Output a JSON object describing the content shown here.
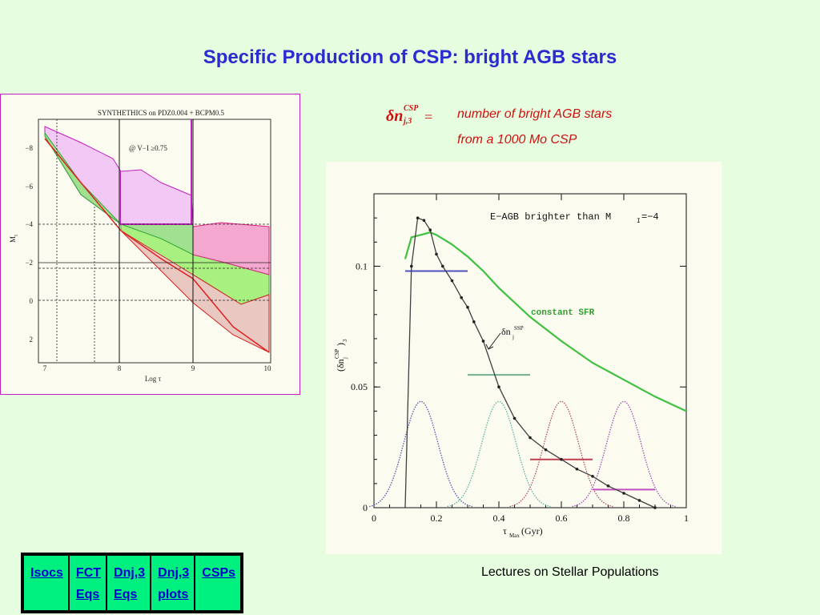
{
  "title": "Specific Production of CSP: bright AGB stars",
  "formula": {
    "symbol": "δn",
    "superscript": "CSP",
    "subscript": "j,3",
    "equals": "="
  },
  "description": {
    "line1": "number of bright AGB stars",
    "line2": "from a 1000 Mo CSP"
  },
  "left_figure": {
    "title": "SYNTHETHICS on PDZ0.004 + BCPM0.5",
    "annotation": "@ V−I ≥0.75",
    "ylabel": "M",
    "ylabel_sub": "I",
    "xlabel": "Log τ",
    "xticks": [
      "7",
      "8",
      "9",
      "10"
    ],
    "yticks": [
      "−8",
      "−6",
      "−4",
      "−2",
      "0",
      "2"
    ]
  },
  "chart_data": {
    "type": "line",
    "title": "E−AGB brighter than M",
    "title_sub": "I",
    "title_tail": "=−4",
    "xlabel": "τ",
    "xlabel_sub": "Max",
    "xlabel_tail": "(Gyr)",
    "ylabel": "(δn",
    "ylabel_sup": "CSP",
    "ylabel_sub": "j",
    "ylabel_tail": ")",
    "ylabel_tail_sub": "3",
    "xlim": [
      0,
      1
    ],
    "ylim": [
      0,
      0.13
    ],
    "xticks": [
      "0",
      "0.2",
      "0.4",
      "0.6",
      "0.8",
      "1"
    ],
    "yticks": [
      "0",
      "0.05",
      "0.1"
    ],
    "series": [
      {
        "name": "constant SFR",
        "color": "#40c040",
        "x": [
          0.1,
          0.12,
          0.15,
          0.18,
          0.2,
          0.25,
          0.3,
          0.35,
          0.4,
          0.5,
          0.6,
          0.7,
          0.8,
          0.9,
          1.0
        ],
        "y": [
          0.103,
          0.112,
          0.113,
          0.114,
          0.113,
          0.109,
          0.104,
          0.098,
          0.091,
          0.079,
          0.069,
          0.06,
          0.053,
          0.046,
          0.04
        ]
      },
      {
        "name": "δn",
        "label_sup": "SSP",
        "label_sub": "j",
        "color": "#404040",
        "x": [
          0.0,
          0.05,
          0.1,
          0.12,
          0.14,
          0.16,
          0.18,
          0.2,
          0.22,
          0.25,
          0.28,
          0.3,
          0.32,
          0.35,
          0.4,
          0.45,
          0.5,
          0.55,
          0.6,
          0.65,
          0.7,
          0.75,
          0.8,
          0.85,
          0.9
        ],
        "y": [
          0.0,
          0.0,
          0.0,
          0.1,
          0.12,
          0.119,
          0.115,
          0.105,
          0.1,
          0.094,
          0.087,
          0.083,
          0.077,
          0.069,
          0.05,
          0.037,
          0.029,
          0.024,
          0.02,
          0.016,
          0.013,
          0.009,
          0.006,
          0.003,
          0.0
        ]
      }
    ],
    "gaussians": [
      {
        "mu": 0.15,
        "sigma": 0.055,
        "amp": 0.044,
        "color": "#5555aa"
      },
      {
        "mu": 0.4,
        "sigma": 0.055,
        "amp": 0.044,
        "color": "#60b0a0"
      },
      {
        "mu": 0.6,
        "sigma": 0.055,
        "amp": 0.044,
        "color": "#b05060"
      },
      {
        "mu": 0.8,
        "sigma": 0.055,
        "amp": 0.044,
        "color": "#a050b0"
      }
    ],
    "bin_lines": [
      {
        "x0": 0.1,
        "x1": 0.3,
        "y": 0.098,
        "color": "#5050c0"
      },
      {
        "x0": 0.3,
        "x1": 0.5,
        "y": 0.055,
        "color": "#70b090"
      },
      {
        "x0": 0.5,
        "x1": 0.7,
        "y": 0.02,
        "color": "#c04050"
      },
      {
        "x0": 0.7,
        "x1": 0.9,
        "y": 0.0075,
        "color": "#c050c0"
      }
    ]
  },
  "nav": {
    "items": [
      {
        "line1": "Isocs",
        "line2": ""
      },
      {
        "line1": "FCT",
        "line2": "Eqs"
      },
      {
        "line1": "Dnj,3",
        "line2": "Eqs"
      },
      {
        "line1": "Dnj,3",
        "line2": "plots"
      },
      {
        "line1": "CSPs",
        "line2": ""
      }
    ]
  },
  "footer": "Lectures on Stellar Populations"
}
